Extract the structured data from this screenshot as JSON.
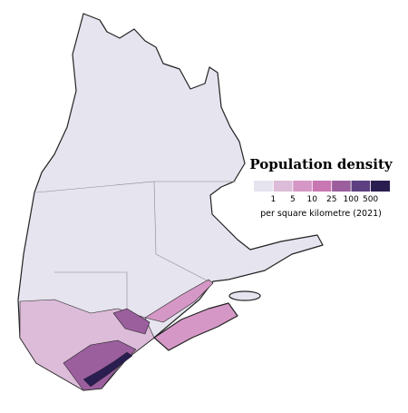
{
  "title": "Population density",
  "legend": {
    "ticks": [
      1,
      5,
      10,
      25,
      100,
      500
    ],
    "colors": [
      "#e6e4ef",
      "#dcbcd8",
      "#d598c6",
      "#c977b2",
      "#9b5f9e",
      "#5c4080",
      "#2a1d4f"
    ]
  },
  "subtitle": "per square kilometre (2021)"
}
